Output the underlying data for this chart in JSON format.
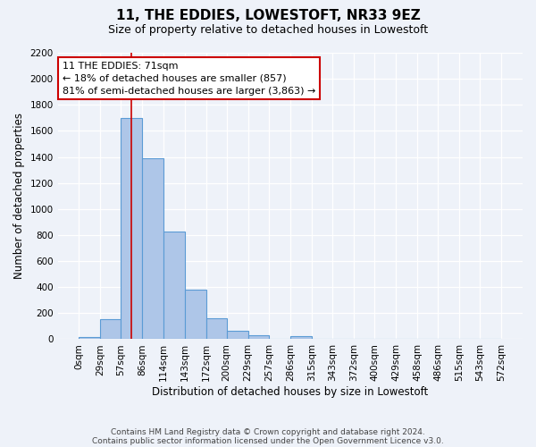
{
  "title": "11, THE EDDIES, LOWESTOFT, NR33 9EZ",
  "subtitle": "Size of property relative to detached houses in Lowestoft",
  "xlabel": "Distribution of detached houses by size in Lowestoft",
  "ylabel": "Number of detached properties",
  "bin_edges": [
    0,
    29,
    57,
    86,
    114,
    143,
    172,
    200,
    229,
    257,
    286,
    315,
    343,
    372,
    400,
    429,
    458,
    486,
    515,
    543,
    572
  ],
  "bar_heights": [
    20,
    155,
    1700,
    1390,
    830,
    380,
    160,
    65,
    30,
    0,
    25,
    0,
    0,
    0,
    0,
    0,
    0,
    0,
    0,
    0
  ],
  "bar_color": "#aec6e8",
  "bar_edge_color": "#5b9bd5",
  "property_size": 71,
  "vline_color": "#cc0000",
  "annotation_line1": "11 THE EDDIES: 71sqm",
  "annotation_line2": "← 18% of detached houses are smaller (857)",
  "annotation_line3": "81% of semi-detached houses are larger (3,863) →",
  "annotation_box_color": "#ffffff",
  "annotation_box_edge_color": "#cc0000",
  "ylim": [
    0,
    2200
  ],
  "yticks": [
    0,
    200,
    400,
    600,
    800,
    1000,
    1200,
    1400,
    1600,
    1800,
    2000,
    2200
  ],
  "x_tick_labels": [
    "0sqm",
    "29sqm",
    "57sqm",
    "86sqm",
    "114sqm",
    "143sqm",
    "172sqm",
    "200sqm",
    "229sqm",
    "257sqm",
    "286sqm",
    "315sqm",
    "343sqm",
    "372sqm",
    "400sqm",
    "429sqm",
    "458sqm",
    "486sqm",
    "515sqm",
    "543sqm",
    "572sqm"
  ],
  "background_color": "#eef2f9",
  "grid_color": "#ffffff",
  "footer_line1": "Contains HM Land Registry data © Crown copyright and database right 2024.",
  "footer_line2": "Contains public sector information licensed under the Open Government Licence v3.0.",
  "title_fontsize": 11,
  "subtitle_fontsize": 9,
  "axis_label_fontsize": 8.5,
  "tick_fontsize": 7.5,
  "annotation_fontsize": 8,
  "footer_fontsize": 6.5
}
